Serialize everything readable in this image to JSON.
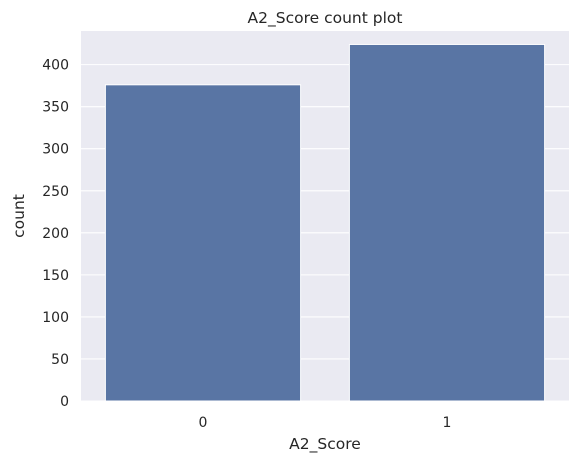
{
  "chart_data": {
    "type": "bar",
    "title": "A2_Score count plot",
    "xlabel": "A2_Score",
    "ylabel": "count",
    "categories": [
      "0",
      "1"
    ],
    "values": [
      376,
      424
    ],
    "ylim": [
      0,
      440
    ],
    "yticks": [
      0,
      50,
      100,
      150,
      200,
      250,
      300,
      350,
      400
    ],
    "grid": true,
    "legend": "none",
    "colors": {
      "bar": "#5975a4",
      "plot_background": "#eaeaf2",
      "grid": "#ffffff",
      "text": "#262626"
    }
  }
}
